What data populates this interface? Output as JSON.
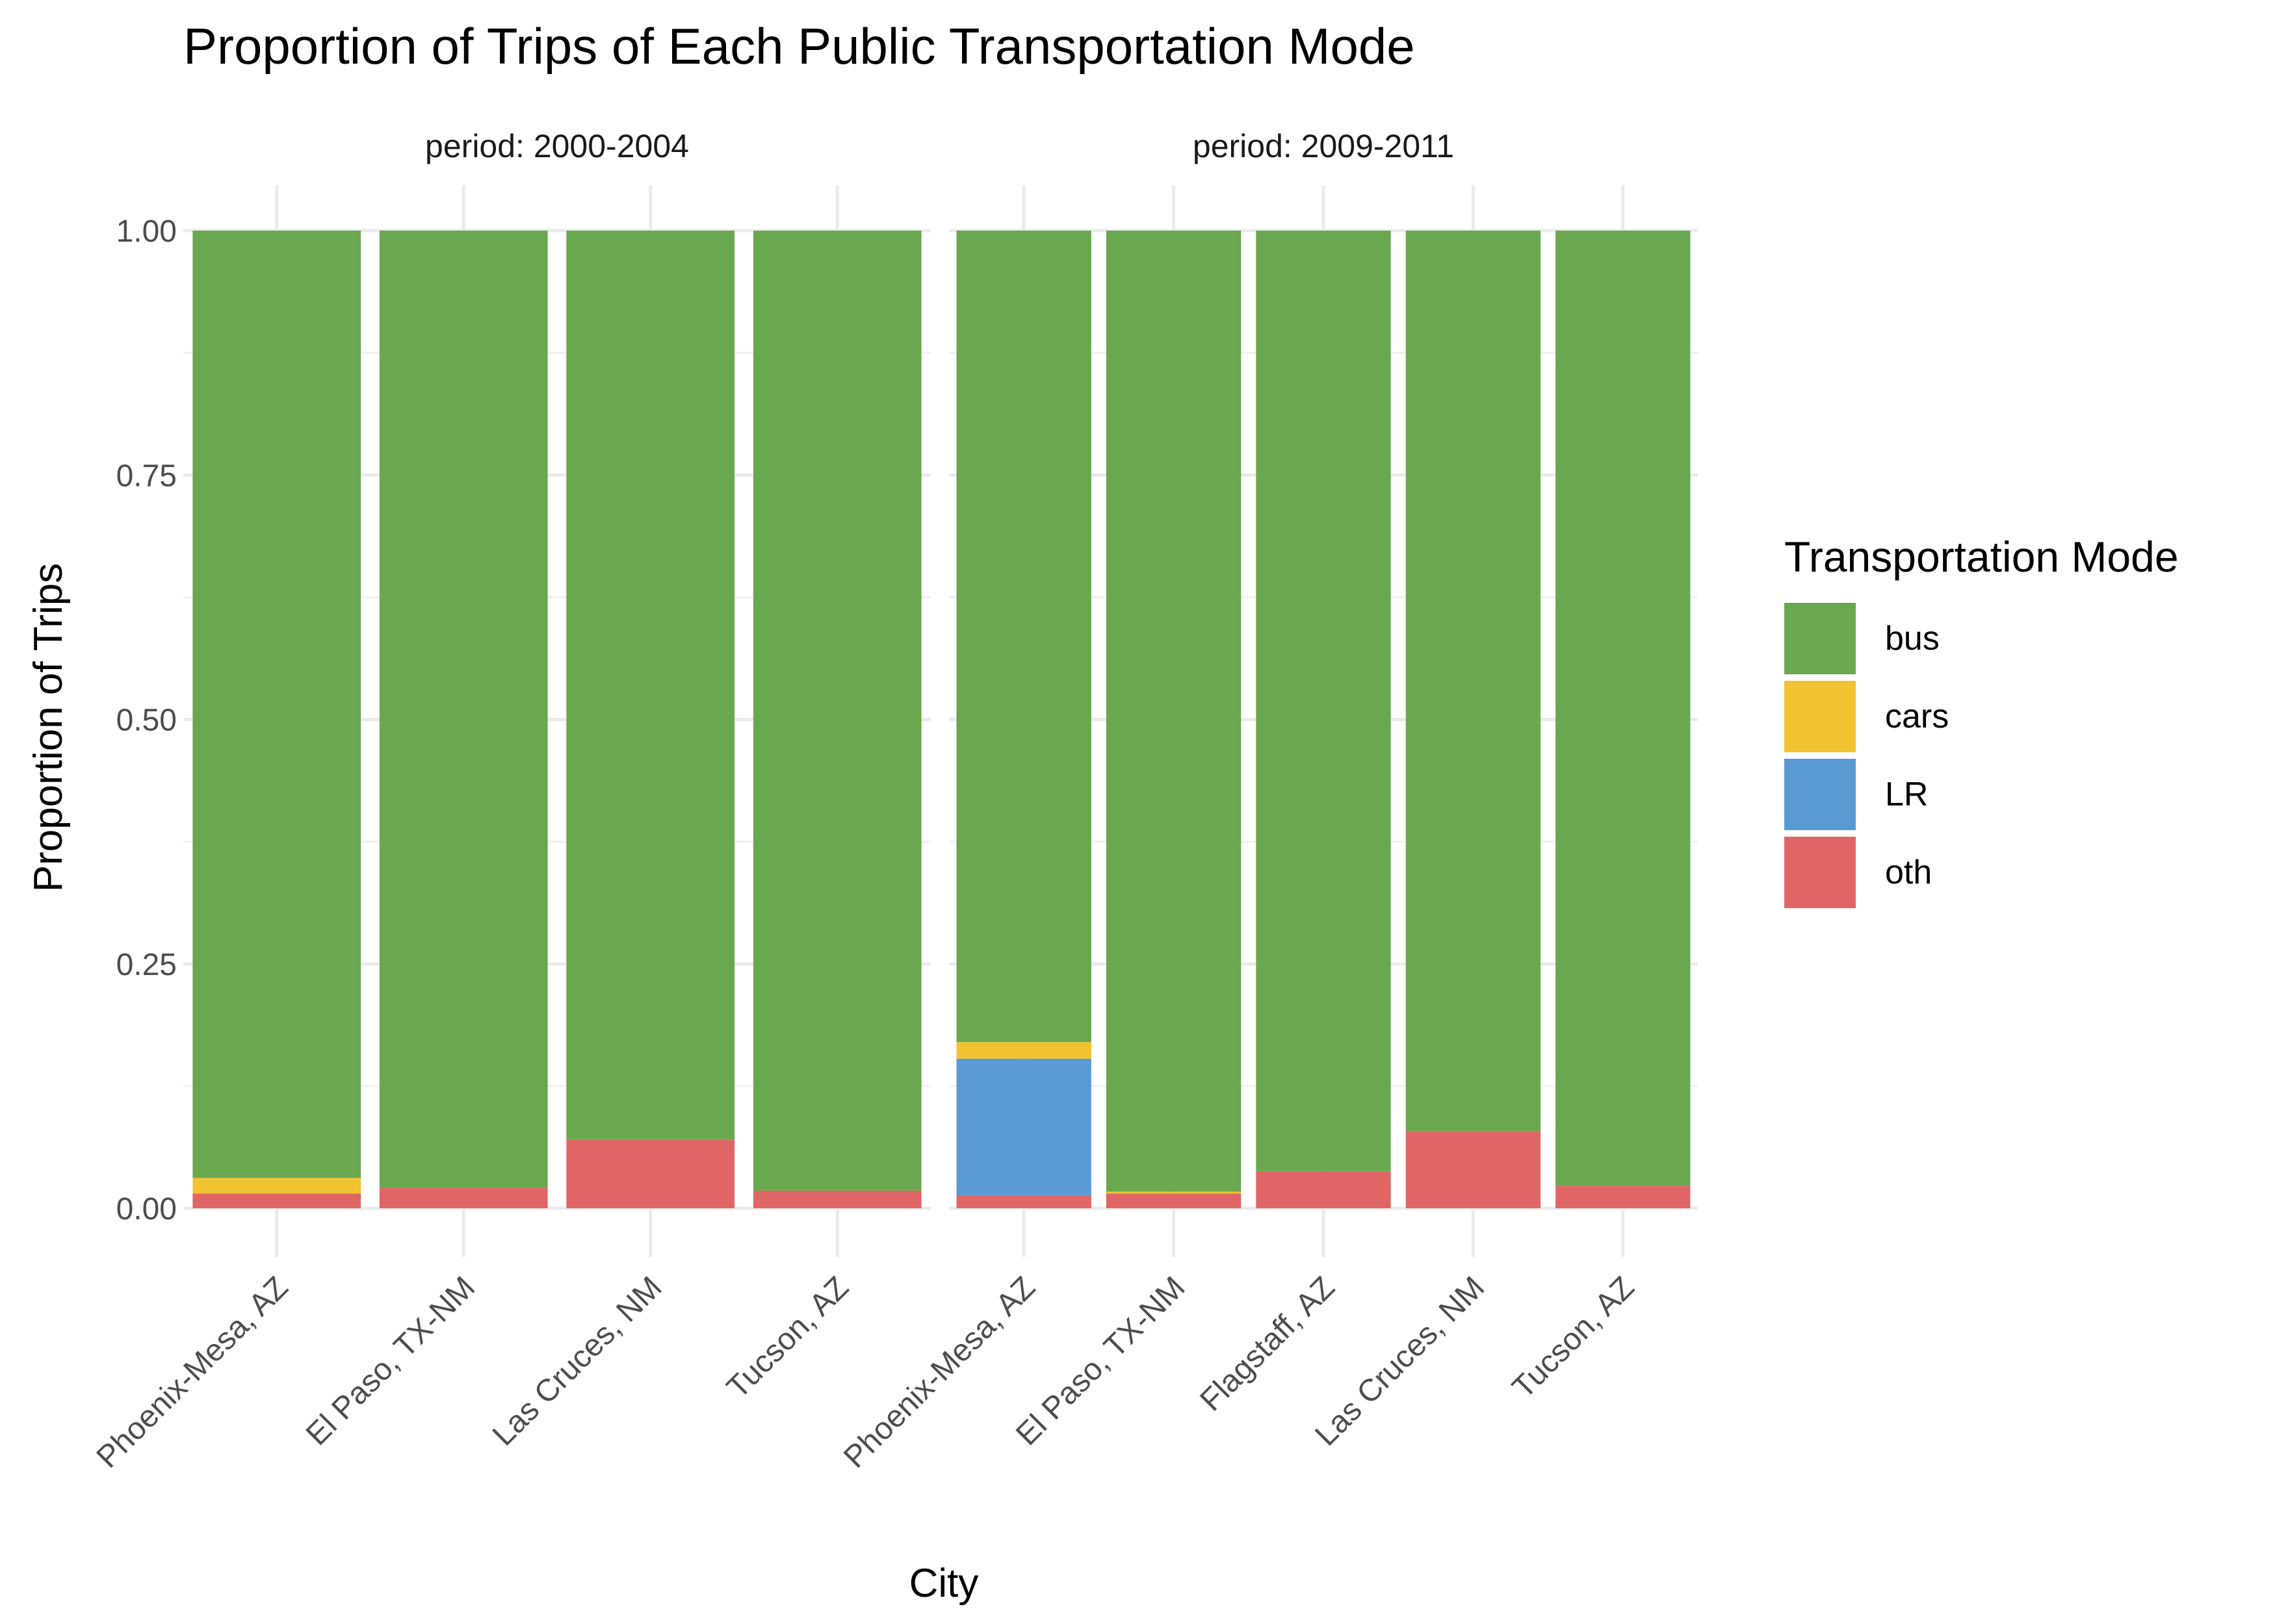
{
  "chart_data": {
    "type": "bar",
    "stacked": true,
    "title": "Proportion of Trips of Each Public Transportation Mode",
    "xlabel": "City",
    "ylabel": "Proportion of Trips",
    "ylim": [
      0,
      1
    ],
    "yticks": [
      "0.00",
      "0.25",
      "0.50",
      "0.75",
      "1.00"
    ],
    "ytick_values": [
      0,
      0.25,
      0.5,
      0.75,
      1.0
    ],
    "grid": true,
    "legend": {
      "title": "Transportation Mode",
      "placement": "right",
      "items": [
        {
          "label": "bus",
          "color": "#6aa84f"
        },
        {
          "label": "cars",
          "color": "#f1c232"
        },
        {
          "label": "LR",
          "color": "#5b9bd5"
        },
        {
          "label": "oth",
          "color": "#e06666"
        }
      ]
    },
    "stack_order": [
      "oth",
      "LR",
      "cars",
      "bus"
    ],
    "panels": [
      {
        "label": "period: 2000-2004",
        "categories": [
          "Phoenix-Mesa,  AZ",
          "El Paso,  TX-NM",
          "Las Cruces,  NM",
          "Tucson,  AZ"
        ],
        "series": [
          {
            "name": "oth",
            "values": [
              0.015,
              0.021,
              0.07,
              0.018
            ]
          },
          {
            "name": "LR",
            "values": [
              0,
              0,
              0,
              0
            ]
          },
          {
            "name": "cars",
            "values": [
              0.016,
              0,
              0,
              0
            ]
          },
          {
            "name": "bus",
            "values": [
              0.969,
              0.979,
              0.93,
              0.982
            ]
          }
        ]
      },
      {
        "label": "period: 2009-2011",
        "categories": [
          "Phoenix-Mesa,  AZ",
          "El Paso,  TX-NM",
          "Flagstaff,  AZ",
          "Las Cruces,  NM",
          "Tucson,  AZ"
        ],
        "series": [
          {
            "name": "oth",
            "values": [
              0.013,
              0.015,
              0.038,
              0.079,
              0.023
            ]
          },
          {
            "name": "LR",
            "values": [
              0.14,
              0,
              0,
              0,
              0
            ]
          },
          {
            "name": "cars",
            "values": [
              0.017,
              0.002,
              0,
              0,
              0
            ]
          },
          {
            "name": "bus",
            "values": [
              0.83,
              0.983,
              0.962,
              0.921,
              0.977
            ]
          }
        ]
      }
    ]
  }
}
